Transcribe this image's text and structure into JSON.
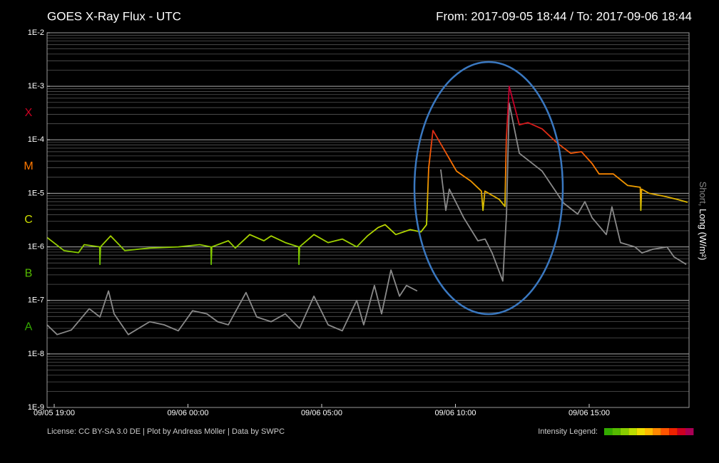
{
  "chart_data": {
    "type": "line",
    "title": "GOES X-Ray Flux - UTC",
    "subtitle": "From: 2017-09-05 18:44  /  To: 2017-09-06 18:44",
    "y2_label_short": "Short,",
    "y2_label_long": "Long (W/m²)",
    "footer": "License: CC BY-SA 3.0 DE | Plot by Andreas Möller | Data by SWPC",
    "log_scale": true,
    "grid": true,
    "xlim": [
      18.733,
      42.733
    ],
    "xticks": [
      {
        "value": 19,
        "label": "09/05 19:00"
      },
      {
        "value": 24,
        "label": "09/06 00:00"
      },
      {
        "value": 29,
        "label": "09/06 05:00"
      },
      {
        "value": 34,
        "label": "09/06 10:00"
      },
      {
        "value": 39,
        "label": "09/06 15:00"
      }
    ],
    "ylim": [
      1e-09,
      0.01
    ],
    "yticks": [
      {
        "value": 1e-09,
        "label": "1E-9"
      },
      {
        "value": 1e-08,
        "label": "1E-8"
      },
      {
        "value": 1e-07,
        "label": "1E-7"
      },
      {
        "value": 1e-06,
        "label": "1E-6"
      },
      {
        "value": 1e-05,
        "label": "1E-5"
      },
      {
        "value": 0.0001,
        "label": "1E-4"
      },
      {
        "value": 0.001,
        "label": "1E-3"
      },
      {
        "value": 0.01,
        "label": "1E-2"
      }
    ],
    "flare_classes": [
      {
        "label": "A",
        "min": 1e-08,
        "color": "#33aa00"
      },
      {
        "label": "B",
        "min": 1e-07,
        "color": "#55bb00"
      },
      {
        "label": "C",
        "min": 1e-06,
        "color": "#ccdd00"
      },
      {
        "label": "M",
        "min": 1e-05,
        "color": "#ff7700"
      },
      {
        "label": "X",
        "min": 0.0001,
        "color": "#cc0022"
      }
    ],
    "intensity_legend": {
      "label": "Intensity Legend:",
      "colors": [
        "#33aa00",
        "#55bb00",
        "#88cc00",
        "#bbdd00",
        "#eedd00",
        "#ffbb00",
        "#ff8800",
        "#ff5500",
        "#ee2200",
        "#cc0022",
        "#aa0055"
      ]
    },
    "series": [
      {
        "name": "Long",
        "color_by": "flare_classes",
        "x": [
          18.73,
          19.37,
          19.91,
          20.12,
          20.7,
          20.71,
          20.73,
          21.11,
          21.64,
          22.57,
          23.64,
          24.44,
          24.86,
          24.87,
          24.89,
          25.51,
          25.77,
          26.31,
          26.84,
          27.11,
          27.64,
          28.14,
          28.15,
          28.17,
          28.71,
          29.24,
          29.77,
          30.31,
          30.71,
          31.11,
          31.37,
          31.77,
          32.31,
          32.71,
          32.92,
          33.0,
          33.16,
          33.51,
          34.04,
          34.57,
          34.97,
          35.03,
          35.1,
          35.64,
          35.85,
          35.9,
          36.01,
          36.39,
          36.71,
          37.24,
          37.77,
          38.31,
          38.71,
          39.11,
          39.37,
          39.9,
          40.44,
          40.91,
          40.93,
          40.96,
          41.24,
          41.77,
          42.3,
          42.68
        ],
        "values": [
          1.5e-06,
          8.5e-07,
          7.8e-07,
          1.1e-06,
          1e-06,
          4.7e-07,
          1e-06,
          1.6e-06,
          8.5e-07,
          9.5e-07,
          1e-06,
          1.1e-06,
          1e-06,
          4.7e-07,
          1e-06,
          1.3e-06,
          9.5e-07,
          1.7e-06,
          1.3e-06,
          1.6e-06,
          1.2e-06,
          1e-06,
          4.7e-07,
          1e-06,
          1.7e-06,
          1.2e-06,
          1.4e-06,
          1e-06,
          1.6e-06,
          2.3e-06,
          2.6e-06,
          1.7e-06,
          2.1e-06,
          1.9e-06,
          2.6e-06,
          3e-05,
          0.00015,
          7.5e-05,
          2.6e-05,
          1.7e-05,
          1.1e-05,
          4.8e-06,
          1.1e-05,
          7.7e-06,
          5.7e-06,
          0.0001,
          0.001,
          0.00019,
          0.00021,
          0.00016,
          9e-05,
          5.6e-05,
          6e-05,
          3.6e-05,
          2.3e-05,
          2.3e-05,
          1.4e-05,
          1.3e-05,
          4.8e-06,
          1.2e-05,
          1e-05,
          8.9e-06,
          7.7e-06,
          6.8e-06
        ]
      },
      {
        "name": "Short",
        "color": "#8a8a8a",
        "x": [
          18.73,
          19.11,
          19.64,
          20.31,
          20.71,
          21.03,
          21.24,
          21.77,
          22.57,
          23.11,
          23.64,
          24.17,
          24.71,
          25.11,
          25.51,
          26.17,
          26.57,
          27.11,
          27.64,
          28.17,
          28.71,
          29.24,
          29.77,
          30.31,
          30.57,
          30.97,
          31.24,
          31.59,
          31.91,
          32.17,
          32.57,
          33.0,
          33.45,
          33.64,
          33.77,
          34.31,
          34.84,
          35.11,
          35.37,
          35.77,
          35.91,
          36.01,
          36.39,
          37.24,
          38.04,
          38.57,
          38.84,
          39.11,
          39.64,
          39.85,
          40.17,
          40.71,
          40.97,
          41.37,
          41.91,
          42.17,
          42.63
        ],
        "values": [
          3.5e-08,
          2.3e-08,
          2.8e-08,
          7e-08,
          4.9e-08,
          1.5e-07,
          5.6e-08,
          2.3e-08,
          4e-08,
          3.5e-08,
          2.7e-08,
          6.4e-08,
          5.6e-08,
          4e-08,
          3.5e-08,
          1.4e-07,
          4.9e-08,
          4e-08,
          5.6e-08,
          3e-08,
          1.2e-07,
          3.5e-08,
          2.7e-08,
          1e-07,
          3.5e-08,
          1.9e-07,
          5.6e-08,
          3.7e-07,
          1.2e-07,
          1.9e-07,
          1.5e-07,
          null,
          2.8e-05,
          4.8e-06,
          1.2e-05,
          3.5e-06,
          1.3e-06,
          1.4e-06,
          7.7e-07,
          2.3e-07,
          4.1e-06,
          0.00048,
          5.6e-05,
          2.6e-05,
          6.6e-06,
          4.1e-06,
          7e-06,
          3.5e-06,
          1.7e-06,
          5.6e-06,
          1.2e-06,
          1e-06,
          7.7e-07,
          9e-07,
          1e-06,
          6.5e-07,
          4.7e-07
        ]
      }
    ]
  }
}
